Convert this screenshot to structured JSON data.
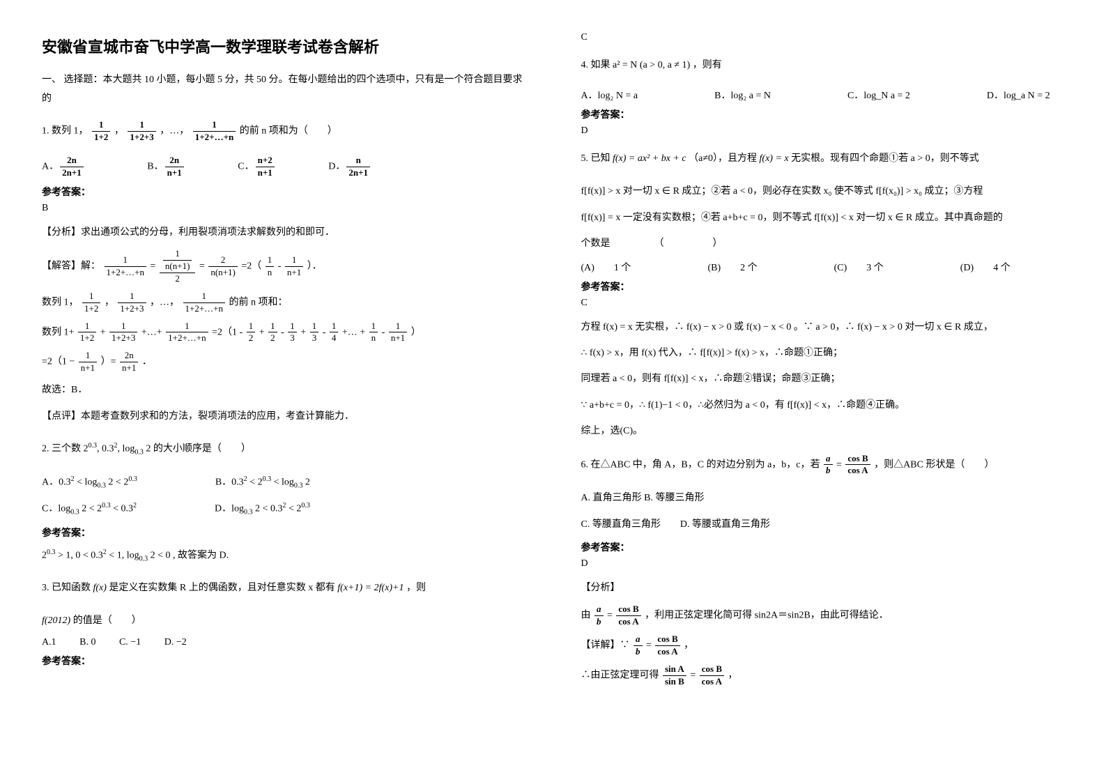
{
  "title": "安徽省宣城市奋飞中学高一数学理联考试卷含解析",
  "section1": "一、 选择题：本大题共 10 小题，每小题 5 分，共 50 分。在每小题给出的四个选项中，只有是一个符合题目要求的",
  "q1_stem_pre": "1. 数列 1，",
  "q1_stem_mid1": "，",
  "q1_stem_mid2": "，…，",
  "q1_stem_post": " 的前 n 项和为（　　）",
  "q1_fA_num": "2n",
  "q1_fA_den": "2n+1",
  "q1_fB_num": "2n",
  "q1_fB_den": "n+1",
  "q1_fC_num": "n+2",
  "q1_fC_den": "n+1",
  "q1_fD_num": "n",
  "q1_fD_den": "2n+1",
  "ck": "参考答案：",
  "q1_ans": "B",
  "q1_fx": "【分析】求出通项公式的分母，利用裂项消项法求解数列的和即可．",
  "q1_jd_label": "【解答】解：",
  "q1_f1_num": "1",
  "q1_f1_den": "1+2+…+n",
  "q1_eq1": " = ",
  "q1_f2up_num": "1",
  "q1_f2up_den": "n(n+1)",
  "q1_f2_den": "2",
  "q1_eq2": " =",
  "q1_f3_num": "2",
  "q1_f3_den": "n(n+1)",
  "q1_eq3": " =2（",
  "q1_f4_num": "1",
  "q1_f4_den": "n",
  "q1_minus": " - ",
  "q1_f5_num": "1",
  "q1_f5_den": "n+1",
  "q1_eq4": "）．",
  "q1_line2_pre": "数列 1，",
  "q1_l2_f1_num": "1",
  "q1_l2_f1_den": "1+2",
  "q1_l2_c1": "，",
  "q1_l2_f2_num": "1",
  "q1_l2_f2_den": "1+2+3",
  "q1_l2_c2": "，…，",
  "q1_l2_f3_num": "1",
  "q1_l2_f3_den": "1+2+…+n",
  "q1_l2_post": " 的前 n 项和：",
  "q1_line3_pre": "数列 1+",
  "q1_l3_f1_num": "1",
  "q1_l3_f1_den": "1+2",
  "q1_l3_p1": "+",
  "q1_l3_f2_num": "1",
  "q1_l3_f2_den": "1+2+3",
  "q1_l3_p2": "+…+",
  "q1_l3_f3_num": "1",
  "q1_l3_f3_den": "1+2+…+n",
  "q1_l3_eq": " =2（1 ",
  "q1_l3_m": "-",
  "q1_l3_fa_num": "1",
  "q1_l3_fa_den": "2",
  "q1_l3_p3": "+",
  "q1_l3_fb_num": "1",
  "q1_l3_fb_den": "2",
  "q1_l3_m2": "-",
  "q1_l3_fc_num": "1",
  "q1_l3_fc_den": "3",
  "q1_l3_p4": "+",
  "q1_l3_fd_num": "1",
  "q1_l3_fd_den": "3",
  "q1_l3_m3": "-",
  "q1_l3_fe_num": "1",
  "q1_l3_fe_den": "4",
  "q1_l3_p5": "+…",
  "q1_l3_p6": "+",
  "q1_l3_ff_num": "1",
  "q1_l3_ff_den": "n",
  "q1_l3_m4": "-",
  "q1_l3_fg_num": "1",
  "q1_l3_fg_den": "n+1",
  "q1_l3_end": "）",
  "q1_line4_pre": "=2（1 − ",
  "q1_l4_f_num": "1",
  "q1_l4_f_den": "n+1",
  "q1_l4_mid": "）=",
  "q1_l4_f2_num": "2n",
  "q1_l4_f2_den": "n+1",
  "q1_l4_end": "．",
  "q1_gx": "故选：B．",
  "q1_dp": "【点评】本题考查数列求和的方法，裂项消项法的应用，考查计算能力．",
  "q2_stem": "2. 三个数 2^{0.3}, 0.3^{2}, log_{0.3} 2 的大小顺序是（　　）",
  "q2_A": "0.3² < log_{0.3} 2 < 2^{0.3}",
  "q2_B": "0.3² < 2^{0.3} < log_{0.3} 2",
  "q2_C": "log_{0.3} 2 < 2^{0.3} < 0.3²",
  "q2_D": "log_{0.3} 2 < 0.3² < 2^{0.3}",
  "q2_exp": "2^{0.3} > 1, 0 < 0.3² < 1, log_{0.3} 2 < 0 , 故答案为 D.",
  "q3_stem_pre": "3. 已知函数 ",
  "q3_fx": "f(x)",
  "q3_stem_mid": " 是定义在实数集 R 上的偶函数，且对任意实数 x 都有 ",
  "q3_eqn": "f(x+1) = 2f(x)+1",
  "q3_stem_post": "，则",
  "q3_line2_pre": "f(2012)",
  "q3_line2_post": " 的值是（　　）",
  "q3_A": "A.1",
  "q3_B": "B. 0",
  "q3_C": "C. −1",
  "q3_D": "D. −2",
  "q4_ans_c": "C",
  "q4_stem": "4. 如果 a² = N (a > 0, a ≠ 1) ，则有",
  "q4_A": "log₂ N = a",
  "q4_B": "log₂ a = N",
  "q4_C": "log_N a = 2",
  "q4_D": "log_a N = 2",
  "q4_ans": "D",
  "q5_stem_pre": "5. 已知 ",
  "q5_f": "f(x) = ax² + bx + c",
  "q5_stem_mid": "（a≠0），且方程 ",
  "q5_eq": "f(x) = x",
  "q5_stem_post": " 无实根。现有四个命题①若 a > 0，则不等式",
  "q5_l2_pre": "f[f(x)] > x 对一切 x ∈ R 成立；②若 a < 0，则必存在实数 x₀ 使不等式 f[f(x₀)] > x₀ 成立；③方程",
  "q5_l3": "f[f(x)] = x 一定没有实数根；④若 a+b+c = 0，则不等式 f[f(x)] < x 对一切 x ∈ R 成立。其中真命题的",
  "q5_l4": "个数是　　　　　（　　　　　）",
  "q5_A": "(A)　　1 个",
  "q5_B": "(B)　　2 个",
  "q5_C": "(C)　　3 个",
  "q5_D": "(D)　　4 个",
  "q5_ans": "C",
  "q5_e1": "方程 f(x) = x 无实根，∴ f(x) − x > 0 或 f(x) − x < 0 。∵ a > 0，∴ f(x) − x > 0 对一切 x ∈ R 成立，",
  "q5_e2": "∴ f(x) > x，用 f(x) 代入，∴ f[f(x)] > f(x) > x，∴命题①正确；",
  "q5_e3": "同理若 a < 0，则有 f[f(x)] < x，∴命题②错误；命题③正确；",
  "q5_e4": "∵ a+b+c = 0，∴ f(1)−1 < 0，∴必然归为 a < 0，有 f[f(x)] < x，∴命题④正确。",
  "q5_e5": "综上，选(C)。",
  "q6_stem_pre": "6. 在△ABC 中，角 A，B，C 的对边分别为 a，b，c，若 ",
  "q6_fr1_num": "a",
  "q6_fr1_den": "b",
  "q6_eq": " = ",
  "q6_fr2_num": "cos B",
  "q6_fr2_den": "cos A",
  "q6_stem_post": "，则△ABC 形状是（　　）",
  "q6_A": "A. 直角三角形 B. 等腰三角形",
  "q6_C": "C. 等腰直角三角形　　D. 等腰或直角三角形",
  "q6_ans": "D",
  "q6_fx": "【分析】",
  "q6_e1_pre": "由 ",
  "q6_e1_mid": "，利用正弦定理化简可得 sin2A＝sin2B，由此可得结论．",
  "q6_xj": "【详解】∵ ",
  "q6_xj_post": "，",
  "q6_e2_pre": "∴由正弦定理可得 ",
  "q6_fr3_num": "sin A",
  "q6_fr3_den": "sin B",
  "q6_fr4_num": "cos B",
  "q6_fr4_den": "cos A",
  "q6_e2_post": "，"
}
